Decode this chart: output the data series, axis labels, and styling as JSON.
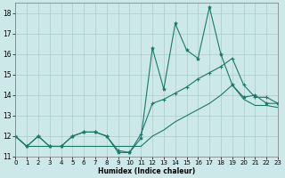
{
  "xlabel": "Humidex (Indice chaleur)",
  "xlim": [
    0,
    23
  ],
  "ylim": [
    11,
    18.5
  ],
  "yticks": [
    11,
    12,
    13,
    14,
    15,
    16,
    17,
    18
  ],
  "xticks": [
    0,
    1,
    2,
    3,
    4,
    5,
    6,
    7,
    8,
    9,
    10,
    11,
    12,
    13,
    14,
    15,
    16,
    17,
    18,
    19,
    20,
    21,
    22,
    23
  ],
  "bg_color": "#cce8e8",
  "grid_color": "#aacccc",
  "line_color": "#1a7a6a",
  "line1_y": [
    12.0,
    11.5,
    12.0,
    11.5,
    11.5,
    12.0,
    12.2,
    12.2,
    12.0,
    11.2,
    11.2,
    11.9,
    16.3,
    14.3,
    17.5,
    16.2,
    15.8,
    18.3,
    16.0,
    14.5,
    13.9,
    14.0,
    13.6,
    13.6
  ],
  "line2_y": [
    12.0,
    11.5,
    12.0,
    11.5,
    11.5,
    12.0,
    12.2,
    12.2,
    12.0,
    11.3,
    11.2,
    12.1,
    13.6,
    13.8,
    14.1,
    14.4,
    14.8,
    15.1,
    15.4,
    15.8,
    14.5,
    13.9,
    13.9,
    13.6
  ],
  "line3_y": [
    12.0,
    11.5,
    11.5,
    11.5,
    11.5,
    11.5,
    11.5,
    11.5,
    11.5,
    11.5,
    11.5,
    11.5,
    12.0,
    12.3,
    12.7,
    13.0,
    13.3,
    13.6,
    14.0,
    14.5,
    13.8,
    13.5,
    13.5,
    13.4
  ]
}
